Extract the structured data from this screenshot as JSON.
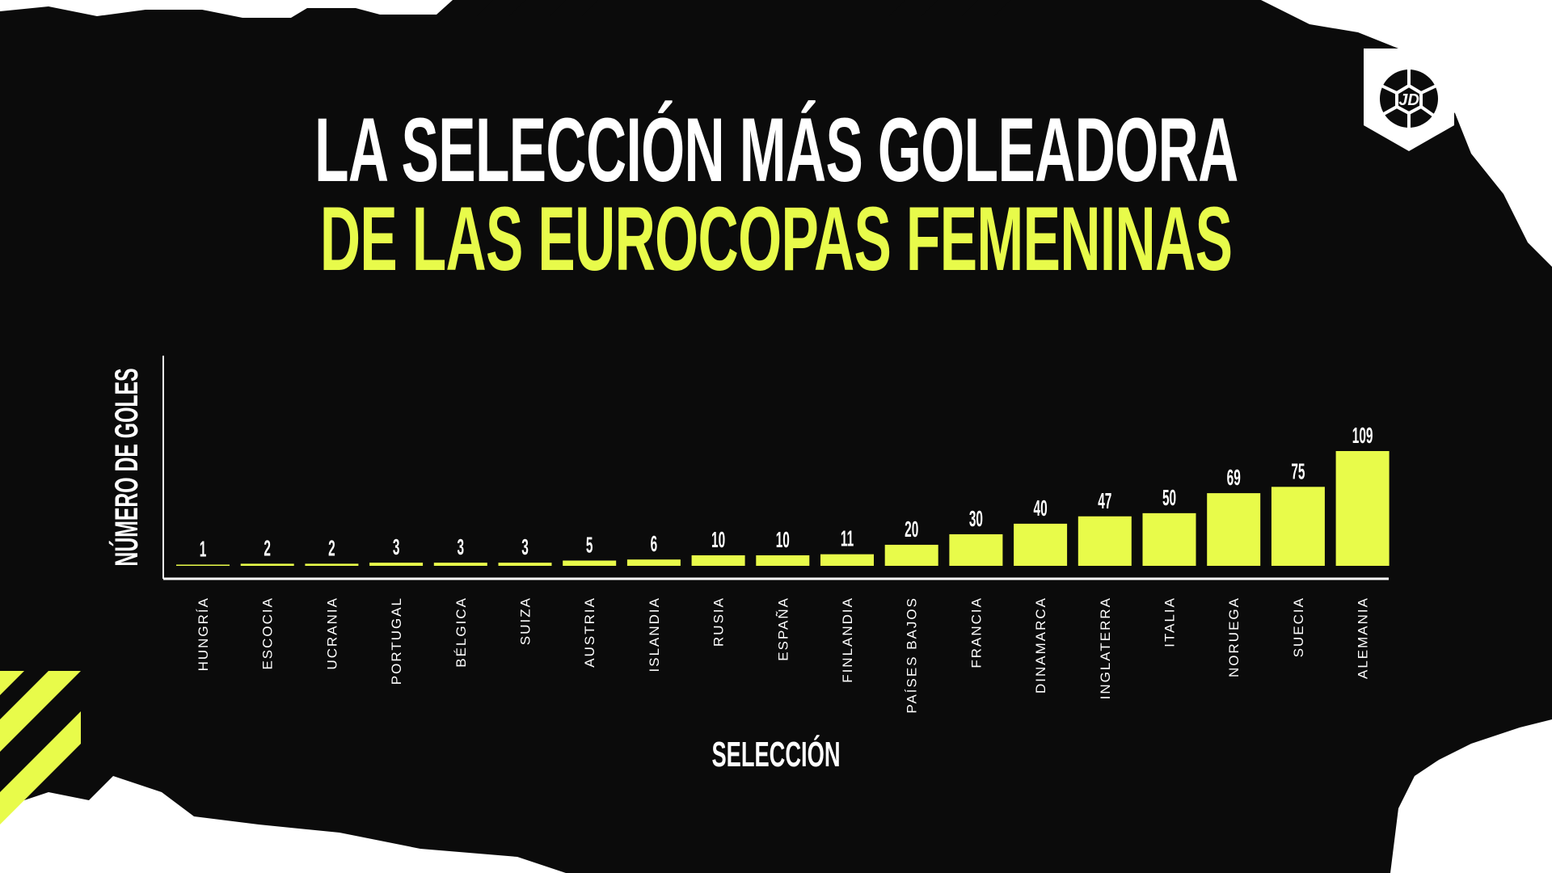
{
  "title": {
    "line1": "LA SELECCIÓN MÁS GOLEADORA",
    "line2": "DE LAS EUROCOPAS FEMENINAS"
  },
  "logo": {
    "text": "JD"
  },
  "colors": {
    "bar": "#e8fb4a",
    "background": "#0b0b0b",
    "text": "#ffffff",
    "accent": "#e8fb4a"
  },
  "chart_data": {
    "type": "bar",
    "title": "LA SELECCIÓN MÁS GOLEADORA DE LAS EUROCOPAS FEMENINAS",
    "xlabel": "SELECCIÓN",
    "ylabel": "NÚMERO DE GOLES",
    "categories": [
      "HUNGRÍA",
      "ESCOCIA",
      "UCRANIA",
      "PORTUGAL",
      "BÉLGICA",
      "SUIZA",
      "AUSTRIA",
      "ISLANDIA",
      "RUSIA",
      "ESPAÑA",
      "FINLANDIA",
      "PAÍSES BAJOS",
      "FRANCIA",
      "DINAMARCA",
      "INGLATERRA",
      "ITALIA",
      "NORUEGA",
      "SUECIA",
      "ALEMANIA"
    ],
    "values": [
      1,
      2,
      2,
      3,
      3,
      3,
      5,
      6,
      10,
      10,
      11,
      20,
      30,
      40,
      47,
      50,
      69,
      75,
      109
    ],
    "ylim": [
      0,
      109
    ],
    "grid": false,
    "data_labels": true
  }
}
